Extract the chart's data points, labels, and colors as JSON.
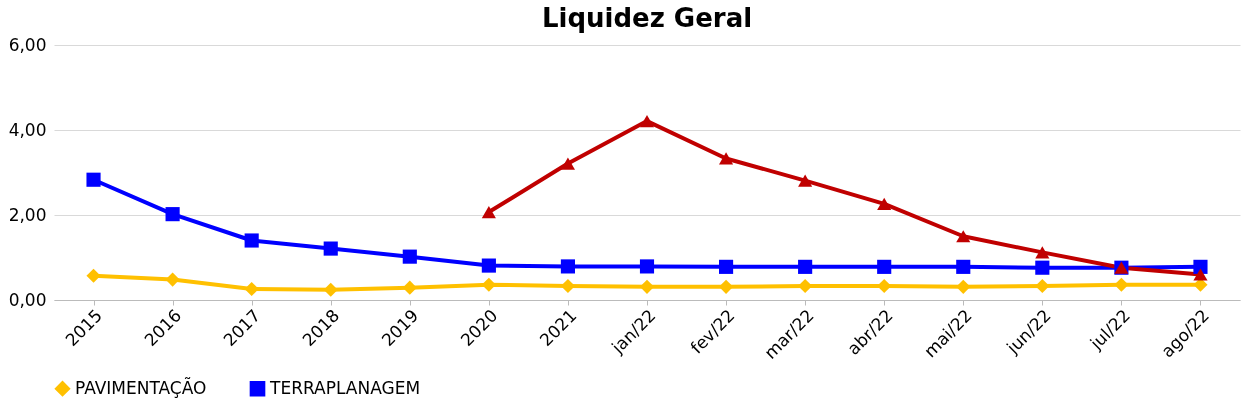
{
  "chart_data": {
    "type": "line",
    "title": "Liquidez Geral",
    "categories": [
      "2015",
      "2016",
      "2017",
      "2018",
      "2019",
      "2020",
      "2021",
      "jan/22",
      "fev/22",
      "mar/22",
      "abr/22",
      "mai/22",
      "jun/22",
      "jul/22",
      "ago/22"
    ],
    "series": [
      {
        "name": "PAVIMENTAÇÃO",
        "color": "#ffc000",
        "marker": "diamond",
        "values": [
          0.57,
          0.48,
          0.26,
          0.24,
          0.29,
          0.36,
          0.33,
          0.31,
          0.31,
          0.33,
          0.33,
          0.31,
          0.33,
          0.36,
          0.36
        ]
      },
      {
        "name": "TERRAPLANAGEM",
        "color": "#0000ff",
        "marker": "square",
        "values": [
          2.83,
          2.02,
          1.4,
          1.21,
          1.02,
          0.81,
          0.79,
          0.79,
          0.78,
          0.78,
          0.78,
          0.78,
          0.76,
          0.76,
          0.78
        ]
      },
      {
        "color": "#c00000",
        "marker": "triangle",
        "values": [
          null,
          null,
          null,
          null,
          null,
          2.07,
          3.21,
          4.21,
          3.33,
          2.81,
          2.26,
          1.5,
          1.12,
          0.76,
          0.6
        ]
      }
    ],
    "ylim": [
      0,
      6
    ],
    "yticks": [
      {
        "value": 0,
        "label": "0,00"
      },
      {
        "value": 2,
        "label": "2,00"
      },
      {
        "value": 4,
        "label": "4,00"
      },
      {
        "value": 6,
        "label": "6,00"
      }
    ],
    "grid": "y",
    "legend": "bottom",
    "line_style": "solid"
  }
}
